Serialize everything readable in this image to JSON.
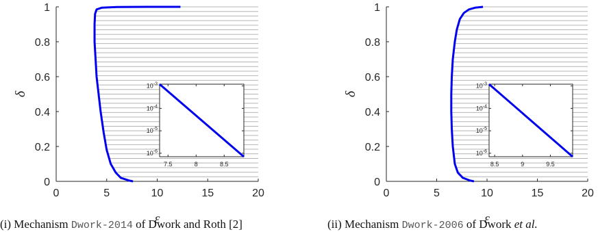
{
  "colors": {
    "curve": "#0000ee",
    "hatch": "#b4b4b4",
    "axis": "#262626"
  },
  "captions": [
    {
      "prefix": "(i) Mechanism ",
      "code": "Dwork-2014",
      "suffix": " of Dwork and Roth [2]"
    },
    {
      "prefix": "(ii) Mechanism ",
      "code": "Dwork-2006",
      "suffix": " of Dwork ",
      "suffix_italic": "et al."
    }
  ],
  "chart_data": [
    {
      "type": "line",
      "xlabel": "ε",
      "ylabel": "δ",
      "xlim": [
        0,
        20
      ],
      "ylim": [
        0,
        1
      ],
      "xticks": [
        "0",
        "5",
        "10",
        "15",
        "20"
      ],
      "yticks": [
        "0",
        "0.2",
        "0.4",
        "0.6",
        "0.8",
        "1"
      ],
      "x": [
        7.6,
        7.2,
        6.4,
        5.9,
        5.4,
        5.0,
        4.7,
        4.4,
        4.2,
        4.0,
        3.9,
        3.8,
        3.8,
        3.85,
        4.0,
        4.5,
        6.0,
        9.0,
        12.3
      ],
      "y": [
        0,
        0.005,
        0.02,
        0.05,
        0.1,
        0.18,
        0.28,
        0.4,
        0.5,
        0.6,
        0.7,
        0.8,
        0.9,
        0.96,
        0.985,
        0.995,
        0.999,
        1.0,
        1.0
      ],
      "shaded_region": "right of curve",
      "inset": {
        "type": "line",
        "yscale": "log",
        "xlim": [
          7.35,
          8.85
        ],
        "ylim": [
          7e-07,
          0.0012
        ],
        "xticks": [
          "7.5",
          "8",
          "8.5"
        ],
        "yticks": [
          "10-3",
          "10-4",
          "10-5",
          "10-6"
        ],
        "x": [
          7.35,
          8.85
        ],
        "y": [
          0.0012,
          7e-07
        ]
      }
    },
    {
      "type": "line",
      "xlabel": "ε",
      "ylabel": "δ",
      "xlim": [
        0,
        20
      ],
      "ylim": [
        0,
        1
      ],
      "xticks": [
        "0",
        "5",
        "10",
        "15",
        "20"
      ],
      "yticks": [
        "0",
        "0.2",
        "0.4",
        "0.6",
        "0.8",
        "1"
      ],
      "x": [
        8.7,
        8.3,
        7.6,
        7.1,
        6.8,
        6.6,
        6.5,
        6.45,
        6.45,
        6.5,
        6.6,
        6.8,
        7.0,
        7.3,
        7.7,
        8.2,
        8.8,
        9.6
      ],
      "y": [
        0,
        0.005,
        0.02,
        0.05,
        0.1,
        0.2,
        0.3,
        0.4,
        0.5,
        0.6,
        0.7,
        0.8,
        0.87,
        0.93,
        0.965,
        0.985,
        0.995,
        1.0
      ],
      "shaded_region": "right of curve",
      "inset": {
        "type": "line",
        "yscale": "log",
        "xlim": [
          8.4,
          9.9
        ],
        "ylim": [
          7e-07,
          0.0012
        ],
        "xticks": [
          "8.5",
          "9",
          "9.5"
        ],
        "yticks": [
          "10-3",
          "10-4",
          "10-5",
          "10-6"
        ],
        "x": [
          8.4,
          9.9
        ],
        "y": [
          0.0012,
          7e-07
        ]
      }
    }
  ]
}
